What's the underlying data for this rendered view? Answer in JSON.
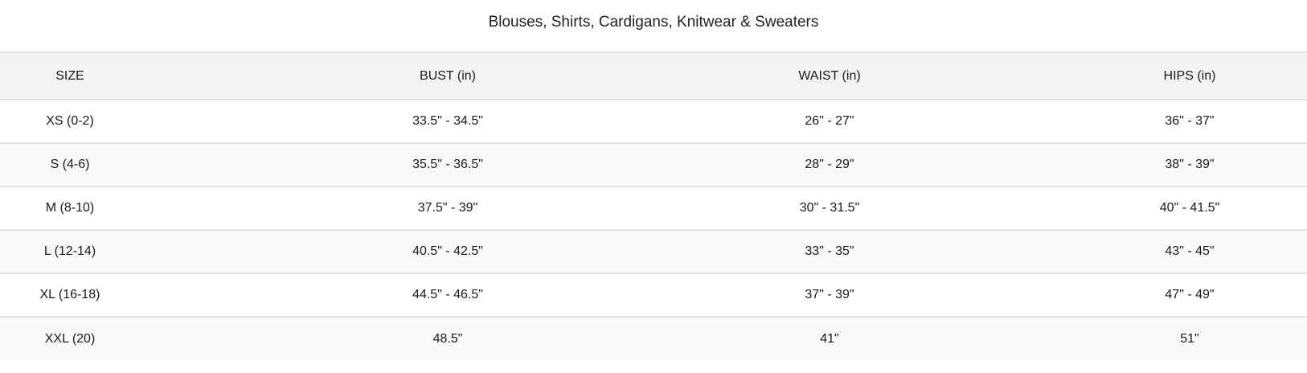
{
  "title": "Blouses, Shirts, Cardigans, Knitwear & Sweaters",
  "columns": [
    "SIZE",
    "BUST (in)",
    "WAIST (in)",
    "HIPS (in)"
  ],
  "rows": [
    [
      "XS (0-2)",
      "33.5\" - 34.5\"",
      "26\" - 27\"",
      "36\" - 37\""
    ],
    [
      "S (4-6)",
      "35.5\" - 36.5\"",
      "28\" - 29\"",
      "38\" - 39\""
    ],
    [
      "M (8-10)",
      "37.5\" - 39\"",
      "30\" - 31.5\"",
      "40\" - 41.5\""
    ],
    [
      "L (12-14)",
      "40.5\" - 42.5\"",
      "33\" - 35\"",
      "43\" - 45\""
    ],
    [
      "XL (16-18)",
      "44.5\" - 46.5\"",
      "37\" - 39\"",
      "47\" - 49\""
    ],
    [
      "XXL (20)",
      "48.5\"",
      "41\"",
      "51\""
    ]
  ]
}
